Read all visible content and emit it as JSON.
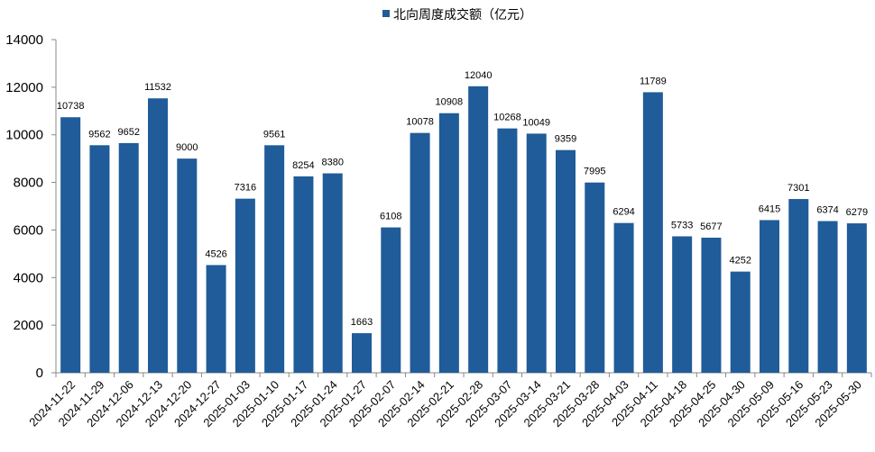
{
  "chart_data": {
    "type": "bar",
    "categories": [
      "2024-11-22",
      "2024-11-29",
      "2024-12-06",
      "2024-12-13",
      "2024-12-20",
      "2024-12-27",
      "2025-01-03",
      "2025-01-10",
      "2025-01-17",
      "2025-01-24",
      "2025-01-27",
      "2025-02-07",
      "2025-02-14",
      "2025-02-21",
      "2025-02-28",
      "2025-03-07",
      "2025-03-14",
      "2025-03-21",
      "2025-03-28",
      "2025-04-03",
      "2025-04-11",
      "2025-04-18",
      "2025-04-25",
      "2025-04-30",
      "2025-05-09",
      "2025-05-16",
      "2025-05-23",
      "2025-05-30"
    ],
    "series": [
      {
        "name": "北向周度成交额（亿元）",
        "color": "#1f5c99",
        "values": [
          10738,
          9562,
          9652,
          11532,
          9000,
          4526,
          7316,
          9561,
          8254,
          8380,
          1663,
          6108,
          10078,
          10908,
          12040,
          10268,
          10049,
          9359,
          7995,
          6294,
          11789,
          5733,
          5677,
          4252,
          6415,
          7301,
          6374,
          6279
        ]
      }
    ],
    "ylim": [
      0,
      14000
    ],
    "yticks": [
      0,
      2000,
      4000,
      6000,
      8000,
      10000,
      12000,
      14000
    ],
    "legend": "top"
  }
}
